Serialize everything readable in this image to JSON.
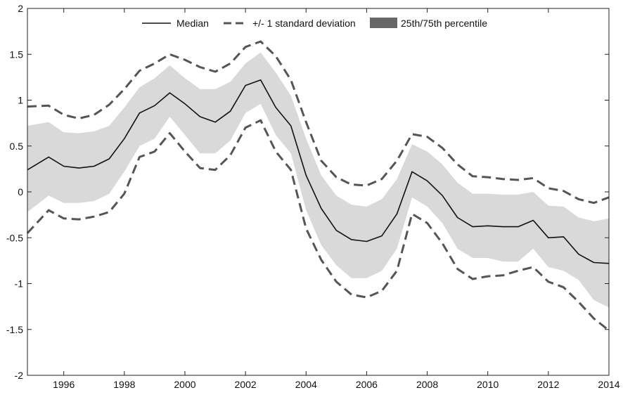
{
  "chart_data": {
    "type": "line",
    "title": "",
    "xlabel": "",
    "ylabel": "",
    "xlim": [
      1994.8,
      2014.0
    ],
    "ylim": [
      -2,
      2
    ],
    "x_ticks": [
      1996,
      1998,
      2000,
      2002,
      2004,
      2006,
      2008,
      2010,
      2012,
      2014
    ],
    "y_ticks": [
      2,
      1.5,
      1,
      0.5,
      0,
      -0.5,
      -1,
      -1.5,
      -2
    ],
    "grid": false,
    "legend_position": "top-center",
    "legend": {
      "median": "Median",
      "sd": "+/- 1 standard deviation",
      "band": "25th/75th percentile"
    },
    "colors": {
      "median": "#111111",
      "sd": "#555555",
      "band_fill": "#d9d9d9",
      "band_legend": "#666666"
    },
    "x": [
      1994.8,
      1995.5,
      1996.0,
      1996.5,
      1997.0,
      1997.5,
      1998.0,
      1998.5,
      1999.0,
      1999.5,
      2000.0,
      2000.5,
      2001.0,
      2001.5,
      2002.0,
      2002.5,
      2003.0,
      2003.5,
      2004.0,
      2004.5,
      2005.0,
      2005.5,
      2006.0,
      2006.5,
      2007.0,
      2007.5,
      2008.0,
      2008.5,
      2009.0,
      2009.5,
      2010.0,
      2010.5,
      2011.0,
      2011.5,
      2012.0,
      2012.5,
      2013.0,
      2013.5,
      2014.0
    ],
    "series": [
      {
        "name": "Median",
        "values": [
          0.24,
          0.38,
          0.28,
          0.26,
          0.28,
          0.36,
          0.58,
          0.86,
          0.94,
          1.08,
          0.96,
          0.82,
          0.76,
          0.88,
          1.16,
          1.22,
          0.92,
          0.72,
          0.18,
          -0.18,
          -0.42,
          -0.52,
          -0.54,
          -0.48,
          -0.24,
          0.22,
          0.12,
          -0.04,
          -0.28,
          -0.38,
          -0.37,
          -0.38,
          -0.38,
          -0.31,
          -0.5,
          -0.49,
          -0.68,
          -0.77,
          -0.78
        ]
      },
      {
        "name": "+/- 1 standard deviation (upper)",
        "values": [
          0.93,
          0.94,
          0.84,
          0.8,
          0.84,
          0.95,
          1.12,
          1.32,
          1.4,
          1.5,
          1.44,
          1.36,
          1.31,
          1.4,
          1.58,
          1.64,
          1.48,
          1.22,
          0.76,
          0.34,
          0.16,
          0.08,
          0.07,
          0.14,
          0.34,
          0.63,
          0.6,
          0.48,
          0.3,
          0.17,
          0.16,
          0.14,
          0.13,
          0.15,
          0.04,
          0.01,
          -0.08,
          -0.12,
          -0.06
        ]
      },
      {
        "name": "+/- 1 standard deviation (lower)",
        "values": [
          -0.45,
          -0.2,
          -0.29,
          -0.3,
          -0.27,
          -0.22,
          -0.02,
          0.38,
          0.44,
          0.64,
          0.44,
          0.26,
          0.24,
          0.4,
          0.7,
          0.78,
          0.44,
          0.24,
          -0.4,
          -0.74,
          -0.98,
          -1.12,
          -1.15,
          -1.08,
          -0.86,
          -0.24,
          -0.34,
          -0.56,
          -0.84,
          -0.95,
          -0.92,
          -0.91,
          -0.86,
          -0.82,
          -0.98,
          -1.04,
          -1.2,
          -1.38,
          -1.51
        ]
      },
      {
        "name": "25th/75th percentile (upper)",
        "values": [
          0.72,
          0.76,
          0.65,
          0.64,
          0.66,
          0.72,
          0.92,
          1.14,
          1.24,
          1.38,
          1.24,
          1.12,
          1.12,
          1.2,
          1.4,
          1.52,
          1.3,
          1.05,
          0.58,
          0.18,
          -0.04,
          -0.14,
          -0.16,
          -0.08,
          0.14,
          0.52,
          0.44,
          0.3,
          0.1,
          -0.02,
          -0.02,
          -0.03,
          -0.03,
          0.0,
          -0.15,
          -0.16,
          -0.28,
          -0.32,
          -0.29
        ]
      },
      {
        "name": "25th/75th percentile (lower)",
        "values": [
          -0.22,
          -0.04,
          -0.12,
          -0.12,
          -0.1,
          -0.02,
          0.22,
          0.5,
          0.58,
          0.82,
          0.62,
          0.42,
          0.42,
          0.56,
          0.86,
          0.96,
          0.62,
          0.42,
          -0.2,
          -0.58,
          -0.8,
          -0.94,
          -0.94,
          -0.86,
          -0.62,
          -0.06,
          -0.16,
          -0.34,
          -0.62,
          -0.72,
          -0.72,
          -0.76,
          -0.76,
          -0.62,
          -0.82,
          -0.86,
          -0.96,
          -1.18,
          -1.26
        ]
      }
    ]
  }
}
